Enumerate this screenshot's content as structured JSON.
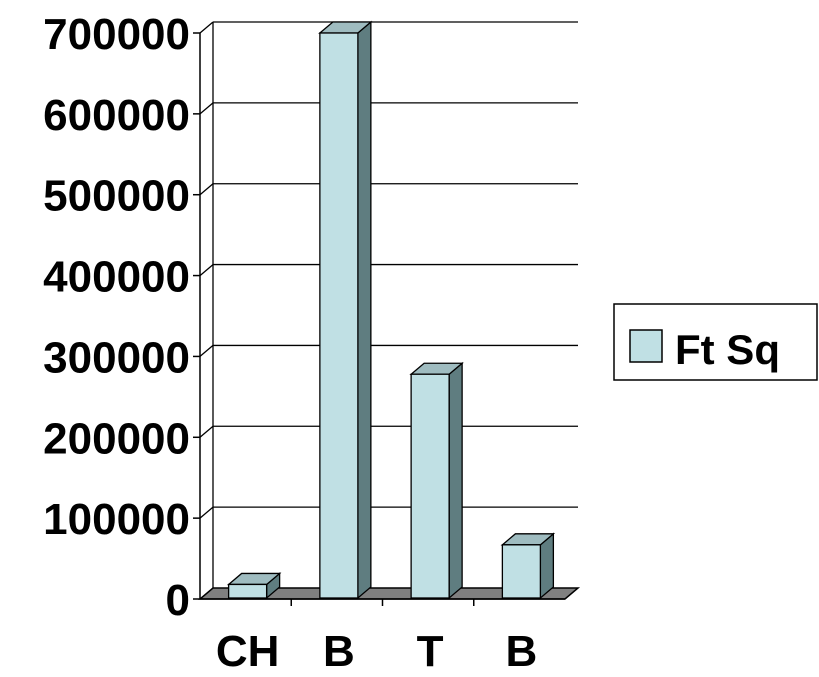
{
  "chart_data": {
    "type": "bar",
    "style": "3d-column",
    "categories": [
      "CH",
      "B",
      "T",
      "B"
    ],
    "series": [
      {
        "name": "Ft Sq",
        "values": [
          18000,
          700000,
          278000,
          67000
        ]
      }
    ],
    "ylim": [
      0,
      700000
    ],
    "yticks": [
      0,
      100000,
      200000,
      300000,
      400000,
      500000,
      600000,
      700000
    ],
    "grid": true,
    "legend": "right",
    "colors": {
      "bar_front": "#c0e0e4",
      "bar_top": "#9fbcc0",
      "bar_side": "#5f7d80",
      "floor": "#808080"
    }
  }
}
